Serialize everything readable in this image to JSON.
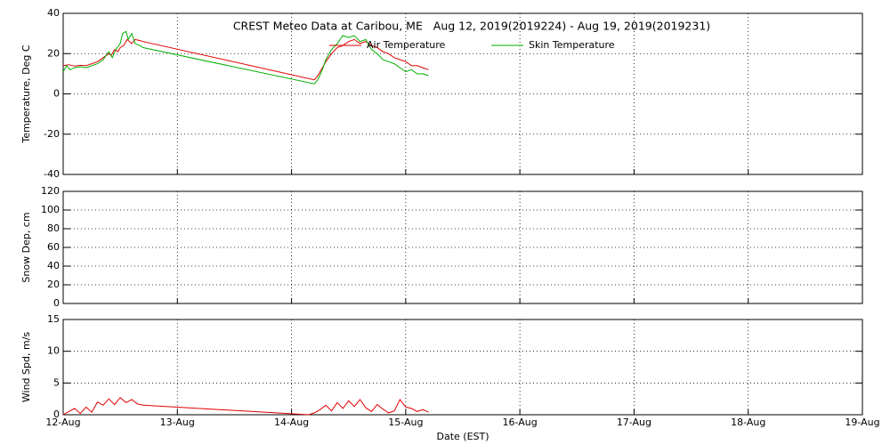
{
  "chart_data": [
    {
      "type": "line",
      "title": "CREST Meteo Data at Caribou, ME   Aug 12, 2019(2019224) - Aug 19, 2019(2019231)",
      "ylabel": "Temperature, Deg C",
      "xlim": [
        0,
        7
      ],
      "ylim": [
        -40,
        40
      ],
      "yticks": [
        -40,
        -20,
        0,
        20,
        40
      ],
      "grid": true,
      "legend": "top",
      "series": [
        {
          "name": "Air Temperature",
          "color": "#e00000",
          "x": [
            0,
            0.05,
            0.1,
            0.15,
            0.2,
            0.25,
            0.3,
            0.35,
            0.4,
            0.42,
            0.45,
            0.48,
            0.5,
            0.53,
            0.56,
            0.6,
            0.63,
            0.67,
            0.7,
            2.2,
            2.23,
            2.27,
            2.3,
            2.35,
            2.4,
            2.45,
            2.5,
            2.55,
            2.6,
            2.65,
            2.7,
            2.75,
            2.8,
            2.85,
            2.9,
            2.95,
            3.0,
            3.05,
            3.1,
            3.15,
            3.2
          ],
          "values": [
            14,
            14.5,
            13.8,
            14.2,
            14,
            15,
            16,
            18,
            20,
            19,
            22,
            21,
            23,
            24,
            27,
            25,
            27,
            26.5,
            26,
            7,
            9,
            13,
            16,
            20,
            23,
            24,
            26,
            27,
            25,
            26,
            24,
            23,
            21,
            20,
            18,
            17,
            16,
            14,
            14,
            13,
            12
          ]
        },
        {
          "name": "Skin Temperature",
          "color": "#00b000",
          "x": [
            0,
            0.03,
            0.06,
            0.1,
            0.15,
            0.2,
            0.25,
            0.3,
            0.35,
            0.4,
            0.43,
            0.46,
            0.5,
            0.52,
            0.55,
            0.57,
            0.6,
            0.63,
            0.67,
            0.7,
            2.2,
            2.23,
            2.27,
            2.3,
            2.35,
            2.4,
            2.45,
            2.5,
            2.55,
            2.6,
            2.65,
            2.7,
            2.75,
            2.8,
            2.85,
            2.9,
            2.95,
            3.0,
            3.05,
            3.1,
            3.15,
            3.2
          ],
          "values": [
            11,
            14,
            12,
            13,
            13.5,
            13,
            14,
            15,
            17,
            21,
            18,
            22,
            25,
            30,
            31,
            27,
            30,
            25,
            24,
            23,
            5,
            7,
            12,
            17,
            22,
            25,
            29,
            28,
            29,
            26,
            27,
            22,
            20,
            17,
            16,
            15,
            13,
            11,
            12,
            10,
            10,
            9
          ]
        }
      ]
    },
    {
      "type": "line",
      "ylabel": "Snow Dep, cm",
      "xlim": [
        0,
        7
      ],
      "ylim": [
        0,
        120
      ],
      "yticks": [
        0,
        20,
        40,
        60,
        80,
        100,
        120
      ],
      "grid": true,
      "series": []
    },
    {
      "type": "line",
      "ylabel": "Wind Spd, m/s",
      "xlabel": "Date (EST)",
      "xlim": [
        0,
        7
      ],
      "ylim": [
        0,
        15
      ],
      "yticks": [
        0,
        5,
        10,
        15
      ],
      "grid": true,
      "xticks": [
        {
          "value": 0,
          "label": "12-Aug"
        },
        {
          "value": 1,
          "label": "13-Aug"
        },
        {
          "value": 2,
          "label": "14-Aug"
        },
        {
          "value": 3,
          "label": "15-Aug"
        },
        {
          "value": 4,
          "label": "16-Aug"
        },
        {
          "value": 5,
          "label": "17-Aug"
        },
        {
          "value": 6,
          "label": "18-Aug"
        },
        {
          "value": 7,
          "label": "19-Aug"
        }
      ],
      "series": [
        {
          "color": "#e00000",
          "x": [
            0,
            0.05,
            0.1,
            0.15,
            0.2,
            0.25,
            0.3,
            0.35,
            0.4,
            0.45,
            0.5,
            0.55,
            0.6,
            0.65,
            0.7,
            2.15,
            2.2,
            2.25,
            2.3,
            2.35,
            2.4,
            2.45,
            2.5,
            2.55,
            2.6,
            2.65,
            2.7,
            2.75,
            2.8,
            2.85,
            2.9,
            2.95,
            3.0,
            3.05,
            3.1,
            3.15,
            3.2
          ],
          "values": [
            0,
            0.5,
            1,
            0.2,
            1.2,
            0.4,
            2,
            1.5,
            2.5,
            1.6,
            2.7,
            1.9,
            2.4,
            1.7,
            1.5,
            0,
            0.3,
            0.8,
            1.5,
            0.6,
            1.9,
            1.0,
            2.2,
            1.3,
            2.4,
            1.1,
            0.5,
            1.6,
            0.9,
            0.3,
            0.6,
            2.4,
            1.2,
            1.0,
            0.5,
            0.8,
            0.4
          ]
        }
      ]
    }
  ]
}
